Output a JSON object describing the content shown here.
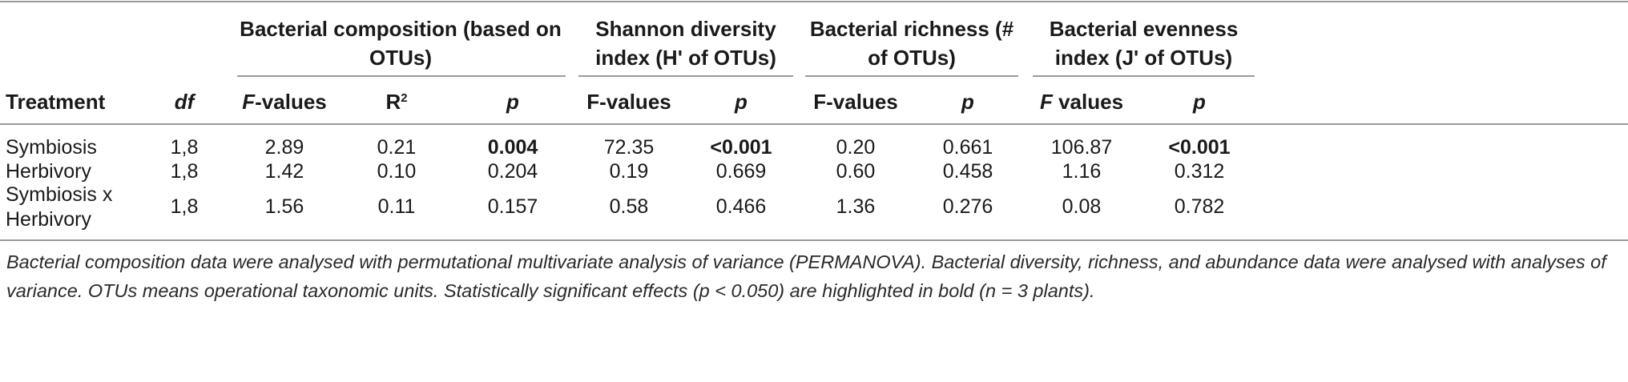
{
  "table": {
    "group_headers": [
      {
        "id": "composition",
        "text": "Bacterial composition (based on OTUs)"
      },
      {
        "id": "shannon",
        "text": "Shannon diversity index (H' of OTUs)"
      },
      {
        "id": "richness",
        "text": "Bacterial richness (# of OTUs)"
      },
      {
        "id": "evenness",
        "text": "Bacterial evenness index (J' of OTUs)"
      }
    ],
    "columns": {
      "treatment": "Treatment",
      "df": "df",
      "comp_f_italic": "F",
      "comp_f_rest": "-values",
      "comp_r": "R",
      "comp_r_sup": "2",
      "comp_p": "p",
      "shan_f": "F-values",
      "shan_p": "p",
      "rich_f": "F-values",
      "rich_p": "p",
      "even_f_italic": "F",
      "even_f_rest": " values",
      "even_p": "p"
    },
    "rows": [
      {
        "treatment": "Symbiosis",
        "df": "1,8",
        "comp_f": "2.89",
        "comp_r2": "0.21",
        "comp_p": "0.004",
        "shan_f": "72.35",
        "shan_p": "<0.001",
        "rich_f": "0.20",
        "rich_p": "0.661",
        "even_f": "106.87",
        "even_p": "<0.001"
      },
      {
        "treatment": "Herbivory",
        "df": "1,8",
        "comp_f": "1.42",
        "comp_r2": "0.10",
        "comp_p": "0.204",
        "shan_f": "0.19",
        "shan_p": "0.669",
        "rich_f": "0.60",
        "rich_p": "0.458",
        "even_f": "1.16",
        "even_p": "0.312"
      },
      {
        "treatment_line1": "Symbiosis x",
        "treatment_line2": "Herbivory",
        "df": "1,8",
        "comp_f": "1.56",
        "comp_r2": "0.11",
        "comp_p": "0.157",
        "shan_f": "0.58",
        "shan_p": "0.466",
        "rich_f": "1.36",
        "rich_p": "0.276",
        "even_f": "0.08",
        "even_p": "0.782"
      }
    ],
    "footnote": "Bacterial composition data were analysed with permutational multivariate analysis of variance (PERMANOVA). Bacterial diversity, richness, and abundance data were analysed with analyses of variance. OTUs means operational taxonomic units. Statistically significant effects (p < 0.050) are highlighted in bold (n = 3 plants)."
  }
}
